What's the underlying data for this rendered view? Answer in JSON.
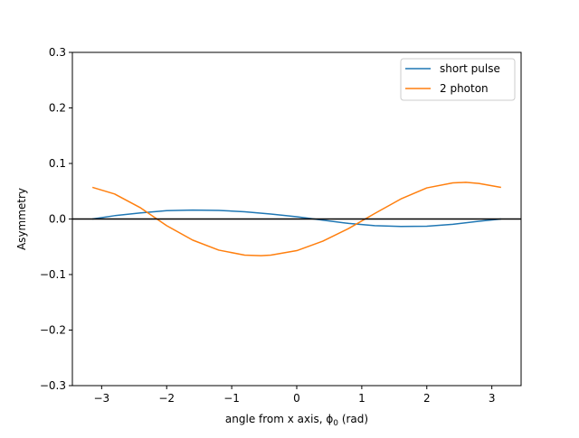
{
  "chart_data": {
    "type": "line",
    "xlabel": "angle from x axis, ϕ",
    "xlabel_subscript": "0",
    "xlabel_suffix": " (rad)",
    "ylabel": "Asymmetry",
    "xlim": [
      -3.45,
      3.45
    ],
    "ylim": [
      -0.3,
      0.3
    ],
    "xticks": [
      -3,
      -2,
      -1,
      0,
      1,
      2,
      3
    ],
    "xtick_labels": [
      "−3",
      "−2",
      "−1",
      "0",
      "1",
      "2",
      "3"
    ],
    "yticks": [
      -0.3,
      -0.2,
      -0.1,
      0.0,
      0.1,
      0.2,
      0.3
    ],
    "ytick_labels": [
      "−0.3",
      "−0.2",
      "−0.1",
      "0.0",
      "0.1",
      "0.2",
      "0.3"
    ],
    "grid": false,
    "legend_position": "top-right",
    "reference_line": {
      "y": 0,
      "color": "#000000"
    },
    "series": [
      {
        "name": "short pulse",
        "color": "#1f77b4",
        "x": [
          -3.1416,
          -2.8,
          -2.4,
          -2.0,
          -1.6,
          -1.2,
          -0.8,
          -0.4,
          0.0,
          0.4,
          0.8,
          1.2,
          1.6,
          2.0,
          2.4,
          2.8,
          3.1416
        ],
        "y": [
          0.0,
          0.006,
          0.011,
          0.015,
          0.016,
          0.0155,
          0.013,
          0.009,
          0.004,
          -0.002,
          -0.008,
          -0.012,
          -0.0135,
          -0.013,
          -0.0095,
          -0.004,
          0.0
        ]
      },
      {
        "name": "2 photon",
        "color": "#ff7f0e",
        "x": [
          -3.1416,
          -2.8,
          -2.4,
          -2.0,
          -1.6,
          -1.2,
          -0.8,
          -0.55,
          -0.4,
          0.0,
          0.4,
          0.8,
          1.2,
          1.6,
          2.0,
          2.4,
          2.6,
          2.8,
          3.1416
        ],
        "y": [
          0.057,
          0.045,
          0.02,
          -0.012,
          -0.038,
          -0.056,
          -0.065,
          -0.066,
          -0.065,
          -0.057,
          -0.04,
          -0.017,
          0.01,
          0.036,
          0.056,
          0.065,
          0.066,
          0.064,
          0.057
        ]
      }
    ]
  }
}
